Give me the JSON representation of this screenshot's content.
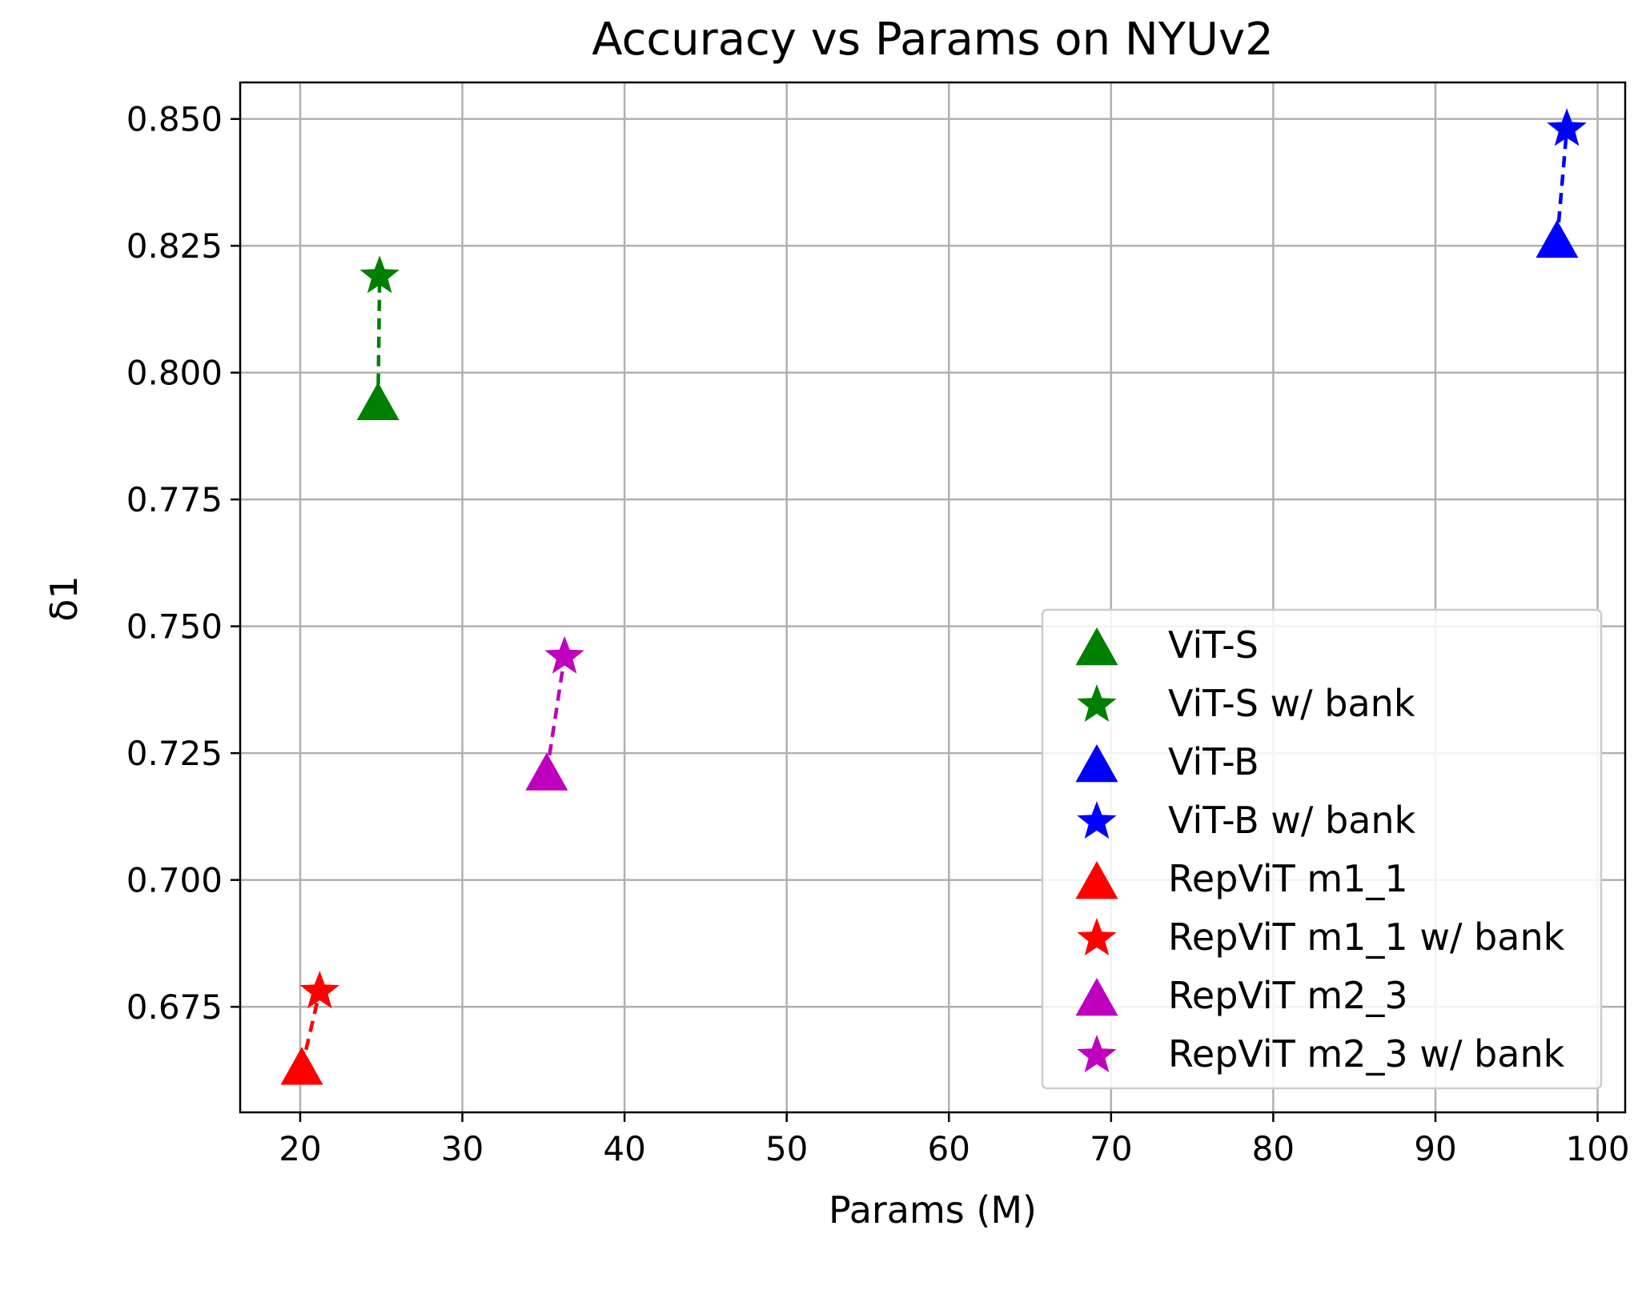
{
  "chart_data": {
    "type": "scatter",
    "title": "Accuracy vs Params on NYUv2",
    "xlabel": "Params (M)",
    "ylabel": "δ1",
    "xlim": [
      16.3,
      101.7
    ],
    "ylim": [
      0.6542,
      0.8572
    ],
    "xticks": [
      20,
      30,
      40,
      50,
      60,
      70,
      80,
      90,
      100
    ],
    "xtick_labels": [
      "20",
      "30",
      "40",
      "50",
      "60",
      "70",
      "80",
      "90",
      "100"
    ],
    "yticks": [
      0.675,
      0.7,
      0.725,
      0.75,
      0.775,
      0.8,
      0.825,
      0.85
    ],
    "ytick_labels": [
      "0.675",
      "0.700",
      "0.725",
      "0.750",
      "0.775",
      "0.800",
      "0.825",
      "0.850"
    ],
    "grid": true,
    "legend_position": "lower-right",
    "series": [
      {
        "name": "ViT-S",
        "marker": "triangle",
        "color": "#008000",
        "x": [
          24.8
        ],
        "y": [
          0.794
        ]
      },
      {
        "name": "ViT-S w/ bank",
        "marker": "star",
        "color": "#008000",
        "x": [
          24.9
        ],
        "y": [
          0.819
        ]
      },
      {
        "name": "ViT-B",
        "marker": "triangle",
        "color": "#0000ff",
        "x": [
          97.5
        ],
        "y": [
          0.826
        ]
      },
      {
        "name": "ViT-B w/ bank",
        "marker": "star",
        "color": "#0000ff",
        "x": [
          98.1
        ],
        "y": [
          0.848
        ]
      },
      {
        "name": "RepViT m1_1",
        "marker": "triangle",
        "color": "#ff0000",
        "x": [
          20.1
        ],
        "y": [
          0.663
        ]
      },
      {
        "name": "RepViT m1_1 w/ bank",
        "marker": "star",
        "color": "#ff0000",
        "x": [
          21.2
        ],
        "y": [
          0.678
        ]
      },
      {
        "name": "RepViT m2_3",
        "marker": "triangle",
        "color": "#bf00bf",
        "x": [
          35.2
        ],
        "y": [
          0.721
        ]
      },
      {
        "name": "RepViT m2_3 w/ bank",
        "marker": "star",
        "color": "#bf00bf",
        "x": [
          36.3
        ],
        "y": [
          0.744
        ]
      }
    ],
    "connectors": [
      {
        "from": "ViT-S",
        "to": "ViT-S w/ bank",
        "color": "#008000",
        "style": "dashed"
      },
      {
        "from": "ViT-B",
        "to": "ViT-B w/ bank",
        "color": "#0000ff",
        "style": "dashed"
      },
      {
        "from": "RepViT m1_1",
        "to": "RepViT m1_1 w/ bank",
        "color": "#ff0000",
        "style": "dashed"
      },
      {
        "from": "RepViT m2_3",
        "to": "RepViT m2_3 w/ bank",
        "color": "#bf00bf",
        "style": "dashed"
      }
    ]
  }
}
